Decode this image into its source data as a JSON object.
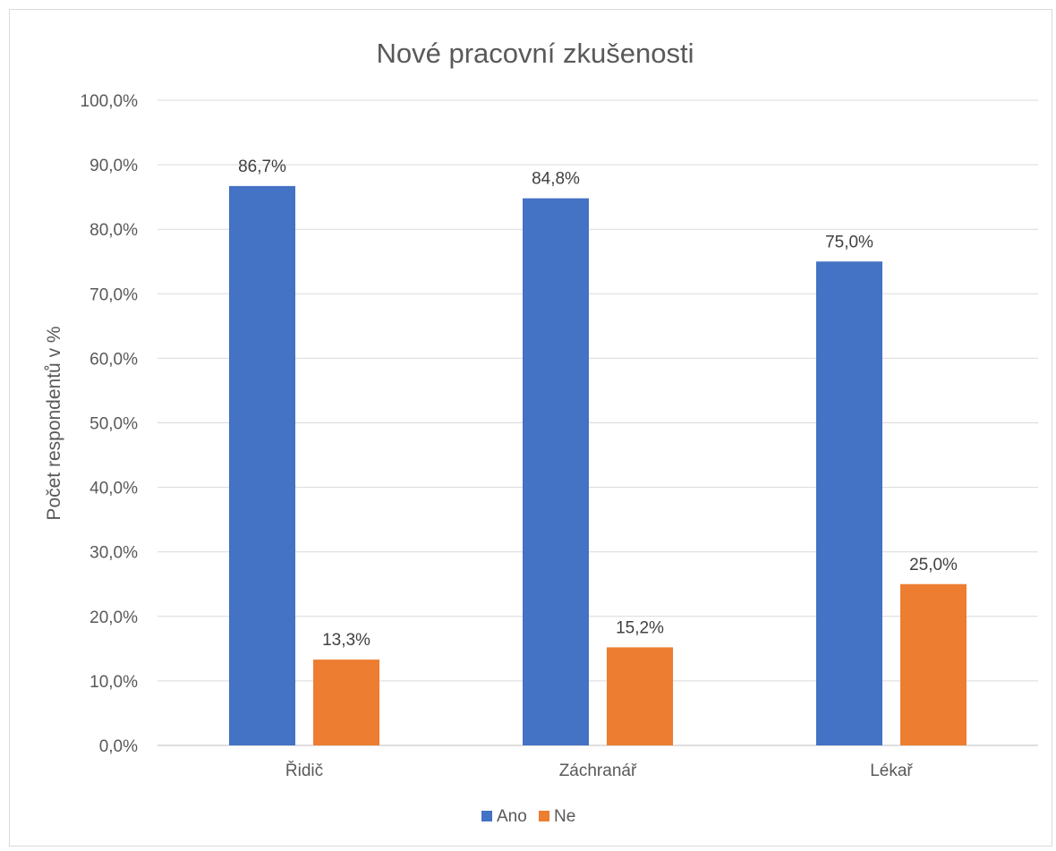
{
  "chart_data": {
    "type": "bar",
    "title": "Nové pracovní zkušenosti",
    "xlabel": "",
    "ylabel": "Počet respondentů v %",
    "categories": [
      "Řidič",
      "Záchranář",
      "Lékař"
    ],
    "series": [
      {
        "name": "Ano",
        "color": "#4472C4",
        "values": [
          86.7,
          84.8,
          75.0
        ],
        "labels": [
          "86,7%",
          "84,8%",
          "75,0%"
        ]
      },
      {
        "name": "Ne",
        "color": "#ED7D31",
        "values": [
          13.3,
          15.2,
          25.0
        ],
        "labels": [
          "13,3%",
          "15,2%",
          "25,0%"
        ]
      }
    ],
    "ylim": [
      0,
      100
    ],
    "yticks": [
      0,
      10,
      20,
      30,
      40,
      50,
      60,
      70,
      80,
      90,
      100
    ],
    "ytick_labels": [
      "0,0%",
      "10,0%",
      "20,0%",
      "30,0%",
      "40,0%",
      "50,0%",
      "60,0%",
      "70,0%",
      "80,0%",
      "90,0%",
      "100,0%"
    ],
    "grid": true,
    "legend_position": "bottom"
  }
}
